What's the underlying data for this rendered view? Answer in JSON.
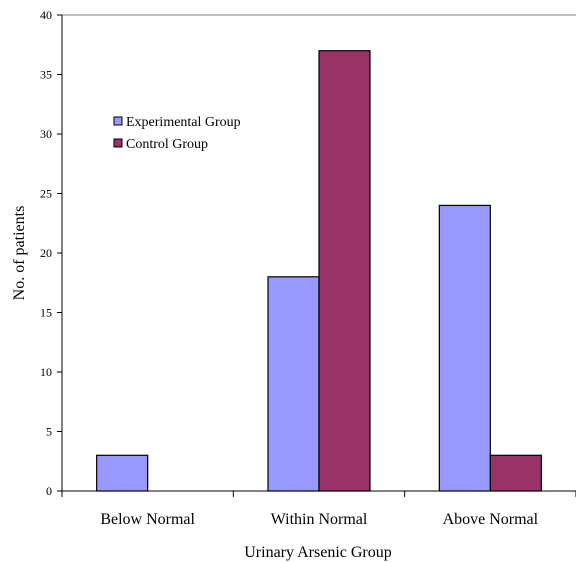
{
  "chart_data": {
    "type": "bar",
    "title": "",
    "xlabel": "Urinary Arsenic Group",
    "ylabel": "No. of patients",
    "categories": [
      "Below Normal",
      "Within Normal",
      "Above Normal"
    ],
    "series": [
      {
        "name": "Experimental Group",
        "values": [
          3,
          18,
          24
        ]
      },
      {
        "name": "Control Group",
        "values": [
          0,
          37,
          3
        ]
      }
    ],
    "ylim": [
      0,
      40
    ],
    "yticks": [
      0,
      5,
      10,
      15,
      20,
      25,
      30,
      35,
      40
    ],
    "grid": false,
    "legend_position": "top-left"
  },
  "colors": {
    "Experimental Group": "#9999ff",
    "Control Group": "#993366",
    "axis": "#000000"
  }
}
